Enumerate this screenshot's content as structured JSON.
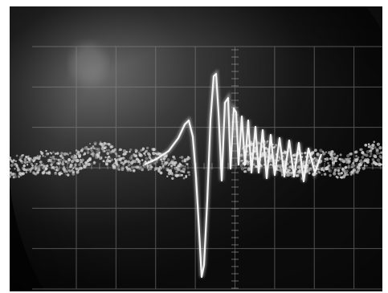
{
  "image": {
    "kind": "photo",
    "subject": "oscilloscope-screen",
    "colors": {
      "frame": "#ffffff",
      "screen_dark": "#0b0b0b",
      "screen_glow": "#6f6f6f",
      "grid": "#8a8a8a",
      "trace": "#f4f4f4"
    },
    "grid": {
      "columns": 8,
      "rows": 6
    }
  }
}
